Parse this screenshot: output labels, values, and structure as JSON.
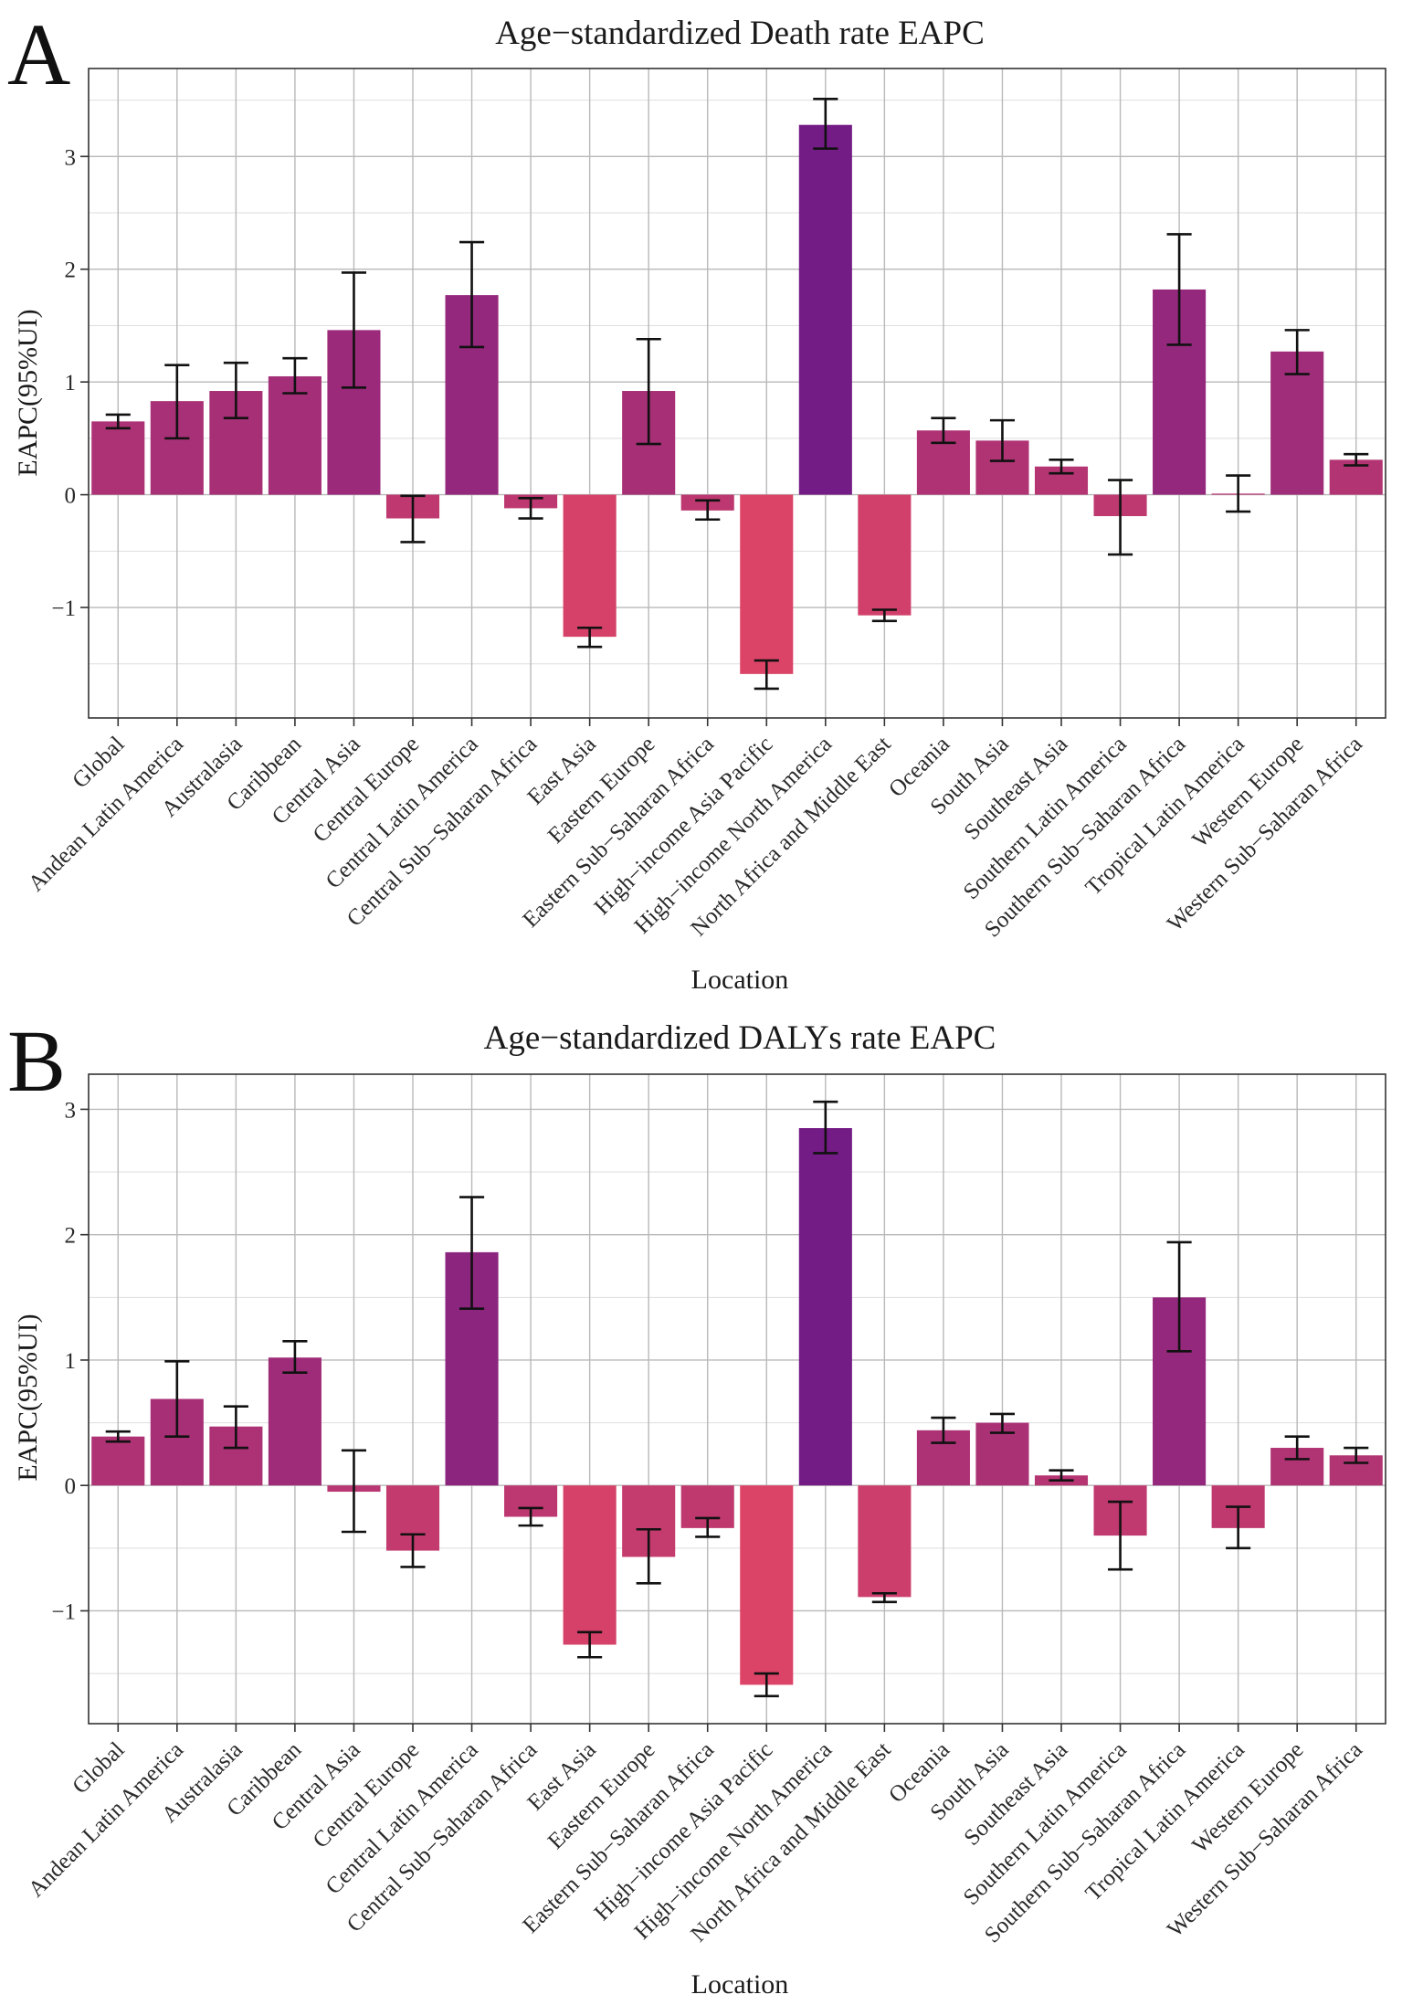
{
  "chart_data": [
    {
      "panel": "A",
      "type": "bar",
      "title": "Age−standardized Death rate EAPC",
      "xlabel": "Location",
      "ylabel": "EAPC(95%UI)",
      "ylim": [
        -1.98,
        3.78
      ],
      "yticks": [
        -1,
        0,
        1,
        2,
        3
      ],
      "yticklabels": [
        "−1",
        "0",
        "1",
        "2",
        "3"
      ],
      "categories": [
        "Global",
        "Andean Latin America",
        "Australasia",
        "Caribbean",
        "Central Asia",
        "Central Europe",
        "Central Latin America",
        "Central Sub−Saharan Africa",
        "East Asia",
        "Eastern Europe",
        "Eastern Sub−Saharan Africa",
        "High−income Asia Pacific",
        "High−income North America",
        "North Africa and Middle East",
        "Oceania",
        "South Asia",
        "Southeast Asia",
        "Southern Latin America",
        "Southern Sub−Saharan Africa",
        "Tropical Latin America",
        "Western Europe",
        "Western Sub−Saharan Africa"
      ],
      "values": [
        0.65,
        0.83,
        0.92,
        1.05,
        1.46,
        -0.21,
        1.77,
        -0.12,
        -1.26,
        0.92,
        -0.14,
        -1.59,
        3.28,
        -1.07,
        0.57,
        0.48,
        0.25,
        -0.19,
        1.82,
        0.01,
        1.27,
        0.31
      ],
      "lower": [
        0.59,
        0.5,
        0.68,
        0.9,
        0.95,
        -0.42,
        1.31,
        -0.21,
        -1.35,
        0.45,
        -0.22,
        -1.72,
        3.07,
        -1.12,
        0.46,
        0.3,
        0.19,
        -0.53,
        1.33,
        -0.15,
        1.07,
        0.26
      ],
      "upper": [
        0.71,
        1.15,
        1.17,
        1.21,
        1.97,
        -0.01,
        2.24,
        -0.03,
        -1.18,
        1.38,
        -0.05,
        -1.47,
        3.51,
        -1.02,
        0.68,
        0.66,
        0.31,
        0.13,
        2.31,
        0.17,
        1.46,
        0.36
      ],
      "color_low": "#dc4467",
      "color_high": "#741c85",
      "grid": true,
      "legend": "none"
    },
    {
      "panel": "B",
      "type": "bar",
      "title": "Age−standardized DALYs rate EAPC",
      "xlabel": "Location",
      "ylabel": "EAPC(95%UI)",
      "ylim": [
        -1.9,
        3.28
      ],
      "yticks": [
        -1,
        0,
        1,
        2,
        3
      ],
      "yticklabels": [
        "−1",
        "0",
        "1",
        "2",
        "3"
      ],
      "categories": [
        "Global",
        "Andean Latin America",
        "Australasia",
        "Caribbean",
        "Central Asia",
        "Central Europe",
        "Central Latin America",
        "Central Sub−Saharan Africa",
        "East Asia",
        "Eastern Europe",
        "Eastern Sub−Saharan Africa",
        "High−income Asia Pacific",
        "High−income North America",
        "North Africa and Middle East",
        "Oceania",
        "South Asia",
        "Southeast Asia",
        "Southern Latin America",
        "Southern Sub−Saharan Africa",
        "Tropical Latin America",
        "Western Europe",
        "Western Sub−Saharan Africa"
      ],
      "values": [
        0.39,
        0.69,
        0.47,
        1.02,
        -0.05,
        -0.52,
        1.86,
        -0.25,
        -1.27,
        -0.57,
        -0.34,
        -1.59,
        2.85,
        -0.89,
        0.44,
        0.5,
        0.08,
        -0.4,
        1.5,
        -0.34,
        0.3,
        0.24
      ],
      "lower": [
        0.35,
        0.39,
        0.3,
        0.9,
        -0.37,
        -0.65,
        1.41,
        -0.32,
        -1.37,
        -0.78,
        -0.41,
        -1.68,
        2.65,
        -0.93,
        0.34,
        0.42,
        0.04,
        -0.67,
        1.07,
        -0.5,
        0.21,
        0.18
      ],
      "upper": [
        0.43,
        0.99,
        0.63,
        1.15,
        0.28,
        -0.39,
        2.3,
        -0.18,
        -1.17,
        -0.35,
        -0.26,
        -1.5,
        3.06,
        -0.86,
        0.54,
        0.57,
        0.12,
        -0.13,
        1.94,
        -0.17,
        0.39,
        0.3
      ],
      "color_low": "#dc4467",
      "color_high": "#741c85",
      "grid": true,
      "legend": "none"
    }
  ]
}
